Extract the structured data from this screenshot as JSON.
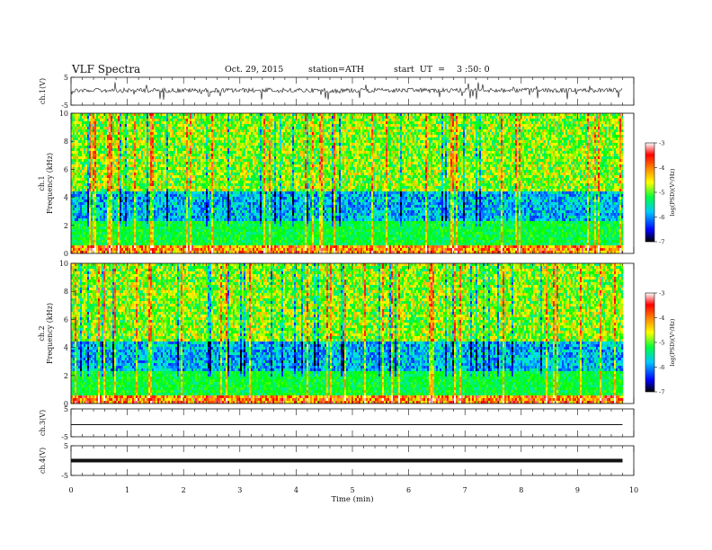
{
  "header": {
    "title": "VLF Spectra",
    "date": "Oct. 29, 2015",
    "station": "station=ATH",
    "start_label": "start  UT  =",
    "start_time": "3 :50: 0"
  },
  "chart_data": [
    {
      "type": "line",
      "panel": "ch1-waveform",
      "ylabel": "ch.1(V)",
      "ylim": [
        -5,
        5
      ],
      "yticks": [
        "5",
        "-5"
      ],
      "xlim": [
        0,
        10
      ],
      "data_extent_min": 9.8,
      "description_level": "noisy waveform around +0.3 V with sporadic spikes"
    },
    {
      "type": "heatmap",
      "panel": "ch1-spectrogram",
      "ylabel_top": "ch.1",
      "ylabel": "Frequency  (kHz)",
      "ylim": [
        0,
        10
      ],
      "yticks": [
        "0",
        "2",
        "4",
        "6",
        "8",
        "10"
      ],
      "xlim": [
        0,
        10
      ],
      "colorbar": {
        "label": "log(PSD)(V²/Hz)",
        "min": -7,
        "max": -3,
        "ticks": [
          "-3",
          "-4",
          "-5",
          "-6",
          "-7"
        ]
      }
    },
    {
      "type": "heatmap",
      "panel": "ch2-spectrogram",
      "ylabel_top": "ch.2",
      "ylabel": "Frequency  (kHz)",
      "ylim": [
        0,
        10
      ],
      "yticks": [
        "0",
        "2",
        "4",
        "6",
        "8",
        "10"
      ],
      "xlim": [
        0,
        10
      ],
      "colorbar": {
        "label": "log(PSD)(V²/Hz)",
        "min": -7,
        "max": -3,
        "ticks": [
          "-3",
          "-4",
          "-5",
          "-6",
          "-7"
        ]
      }
    },
    {
      "type": "line",
      "panel": "ch3-waveform",
      "ylabel": "ch.3(V)",
      "ylim": [
        -5,
        5
      ],
      "yticks": [
        "5",
        "-5"
      ],
      "xlim": [
        0,
        10
      ],
      "level": 0
    },
    {
      "type": "line",
      "panel": "ch4-waveform",
      "ylabel": "ch.4(V)",
      "ylim": [
        -5,
        5
      ],
      "yticks": [
        "5",
        "-5"
      ],
      "xlim": [
        0,
        10
      ],
      "level": 0
    }
  ],
  "xaxis": {
    "label": "Time  (min)",
    "ticks": [
      "0",
      "1",
      "2",
      "3",
      "4",
      "5",
      "6",
      "7",
      "8",
      "9",
      "10"
    ]
  },
  "colors": {
    "waveform": "#111111",
    "colormap": [
      "#000000",
      "#0000ff",
      "#00e0ff",
      "#00ff00",
      "#ffff00",
      "#ff8000",
      "#ff0000",
      "#ffffff"
    ]
  }
}
